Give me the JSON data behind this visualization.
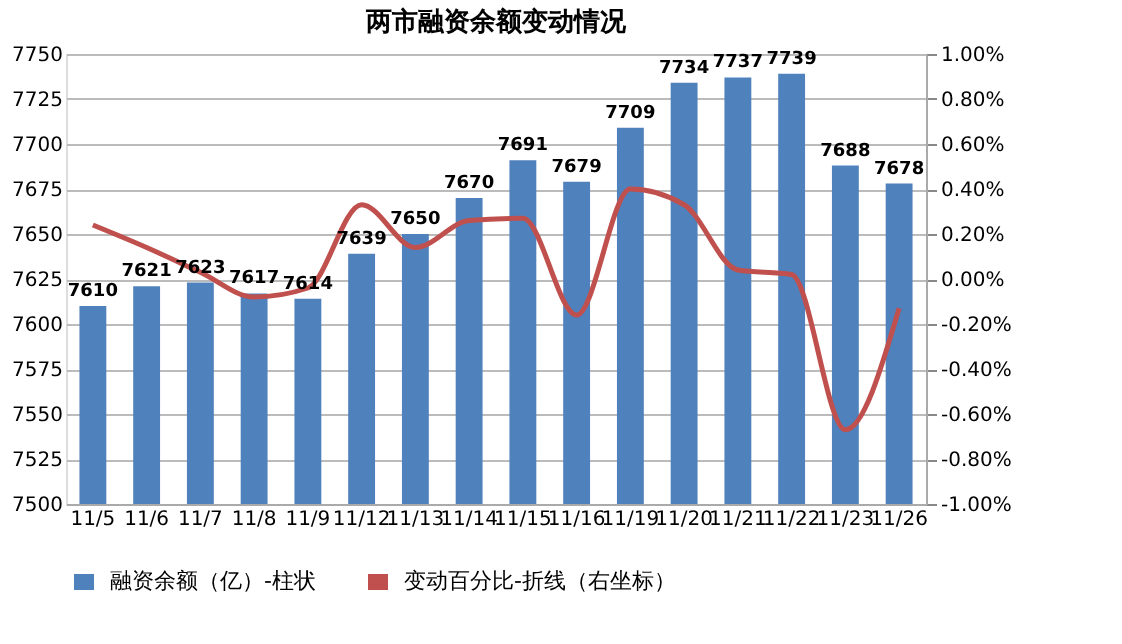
{
  "chart_data": {
    "type": "bar",
    "title": "两市融资余额变动情况",
    "categories": [
      "11/5",
      "11/6",
      "11/7",
      "11/8",
      "11/9",
      "11/12",
      "11/13",
      "11/14",
      "11/15",
      "11/16",
      "11/19",
      "11/20",
      "11/21",
      "11/22",
      "11/23",
      "11/26"
    ],
    "series": [
      {
        "name": "融资余额（亿）-柱状",
        "color": "#4f81bd",
        "values": [
          7610,
          7621,
          7623,
          7617,
          7614,
          7639,
          7650,
          7670,
          7691,
          7679,
          7709,
          7734,
          7737,
          7739,
          7688,
          7678
        ],
        "value_labels": [
          "7610",
          "7621",
          "7623",
          "7617",
          "7614",
          "7639",
          "7650",
          "7670",
          "7691",
          "7679",
          "7709",
          "7734",
          "7737",
          "7739",
          "7688",
          "7678"
        ]
      },
      {
        "name": "变动百分比-折线（右坐标）",
        "color": "#c0504d",
        "type": "line",
        "axis": "y2",
        "values": [
          0.24,
          0.14,
          0.03,
          -0.08,
          -0.04,
          0.33,
          0.14,
          0.26,
          0.27,
          -0.16,
          0.4,
          0.33,
          0.04,
          0.02,
          -0.67,
          -0.13
        ]
      }
    ],
    "ylim": [
      7500,
      7750
    ],
    "yticks": [
      7500,
      7525,
      7550,
      7575,
      7600,
      7625,
      7650,
      7675,
      7700,
      7725,
      7750
    ],
    "y2lim": [
      -1.0,
      1.0
    ],
    "y2ticks": [
      {
        "value": -1.0,
        "label": "-1.00%"
      },
      {
        "value": -0.8,
        "label": "-0.80%"
      },
      {
        "value": -0.6,
        "label": "-0.60%"
      },
      {
        "value": -0.4,
        "label": "-0.40%"
      },
      {
        "value": -0.2,
        "label": "-0.20%"
      },
      {
        "value": 0.0,
        "label": "0.00%"
      },
      {
        "value": 0.2,
        "label": "0.20%"
      },
      {
        "value": 0.4,
        "label": "0.40%"
      },
      {
        "value": 0.6,
        "label": "0.60%"
      },
      {
        "value": 0.8,
        "label": "0.80%"
      },
      {
        "value": 1.0,
        "label": "1.00%"
      }
    ],
    "grid": "y",
    "legend": "bottom"
  }
}
